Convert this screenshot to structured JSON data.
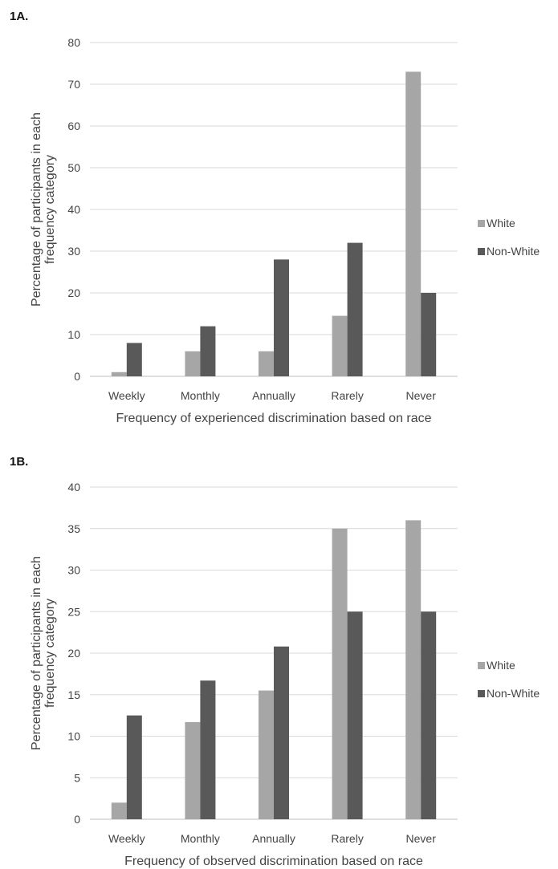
{
  "chart_data": [
    {
      "panel_label": "1A.",
      "type": "bar",
      "categories": [
        "Weekly",
        "Monthly",
        "Annually",
        "Rarely",
        "Never"
      ],
      "series": [
        {
          "name": "White",
          "color": "#a6a6a6",
          "values": [
            1,
            6,
            6,
            14.5,
            73
          ]
        },
        {
          "name": "Non-White",
          "color": "#595959",
          "values": [
            8,
            12,
            28,
            32,
            20
          ]
        }
      ],
      "xlabel": "Frequency of experienced discrimination based on race",
      "ylabel": "Percentage of participants in each frequency category",
      "ylim": [
        0,
        80
      ],
      "yticks": [
        0,
        10,
        20,
        30,
        40,
        50,
        60,
        70,
        80
      ],
      "grid": true,
      "legend_position": "right"
    },
    {
      "panel_label": "1B.",
      "type": "bar",
      "categories": [
        "Weekly",
        "Monthly",
        "Annually",
        "Rarely",
        "Never"
      ],
      "series": [
        {
          "name": "White",
          "color": "#a6a6a6",
          "values": [
            2,
            11.7,
            15.5,
            35,
            36
          ]
        },
        {
          "name": "Non-White",
          "color": "#595959",
          "values": [
            12.5,
            16.7,
            20.8,
            25,
            25
          ]
        }
      ],
      "xlabel": "Frequency of observed discrimination based on race",
      "ylabel": "Percentage of participants in each frequency category",
      "ylim": [
        0,
        40
      ],
      "yticks": [
        0,
        5,
        10,
        15,
        20,
        25,
        30,
        35,
        40
      ],
      "grid": true,
      "legend_position": "right"
    }
  ]
}
